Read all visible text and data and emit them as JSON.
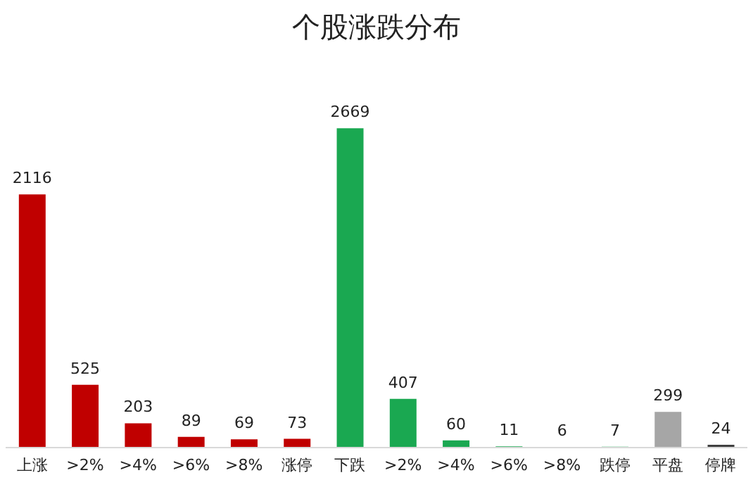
{
  "chart_data": {
    "type": "bar",
    "title": "个股涨跌分布",
    "categories": [
      "上涨",
      ">2%",
      ">4%",
      ">6%",
      ">8%",
      "涨停",
      "下跌",
      ">2%",
      ">4%",
      ">6%",
      ">8%",
      "跌停",
      "平盘",
      "停牌"
    ],
    "values": [
      2116,
      525,
      203,
      89,
      69,
      73,
      2669,
      407,
      60,
      11,
      6,
      7,
      299,
      24
    ],
    "colors": [
      "#c00000",
      "#c00000",
      "#c00000",
      "#c00000",
      "#c00000",
      "#c00000",
      "#1aa851",
      "#1aa851",
      "#1aa851",
      "#1aa851",
      "#1aa851",
      "#1aa851",
      "#a6a6a6",
      "#404040"
    ],
    "data_labels": true,
    "grid": false,
    "legend": false
  }
}
